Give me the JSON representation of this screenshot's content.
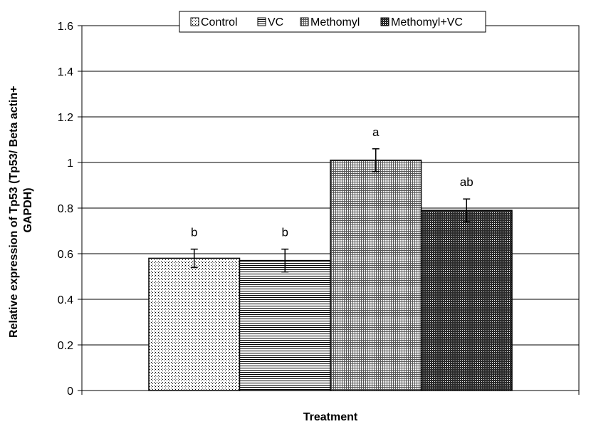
{
  "chart_data": {
    "type": "bar",
    "xlabel": "Treatment",
    "ylabel_line1": "Relative expression of Tp53 (Tp53/ Beta actin+",
    "ylabel_line2": "GAPDH)",
    "ylim": [
      0,
      1.6
    ],
    "yticks": [
      0,
      0.2,
      0.4,
      0.6,
      0.8,
      1,
      1.2,
      1.4,
      1.6
    ],
    "ytick_labels": [
      "0",
      "0.2",
      "0.4",
      "0.6",
      "0.8",
      "1",
      "1.2",
      "1.4",
      "1.6"
    ],
    "grid": true,
    "legend_position": "top",
    "series": [
      {
        "name": "Control",
        "value": 0.58,
        "error": 0.04,
        "label": "b",
        "pattern": "dots"
      },
      {
        "name": "VC",
        "value": 0.57,
        "error": 0.05,
        "label": "b",
        "pattern": "hstripes"
      },
      {
        "name": "Methomyl",
        "value": 1.01,
        "error": 0.05,
        "label": "a",
        "pattern": "grid"
      },
      {
        "name": "Methomyl+VC",
        "value": 0.79,
        "error": 0.05,
        "label": "ab",
        "pattern": "dense"
      }
    ]
  }
}
